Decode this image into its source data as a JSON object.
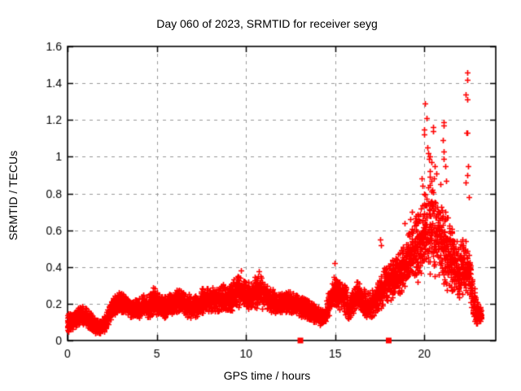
{
  "page": {
    "background": "#ffffff"
  },
  "chart_data": {
    "type": "scatter",
    "title": "Day 060 of 2023, SRMTID for receiver seyg",
    "xlabel": "GPS time / hours",
    "ylabel": "SRMTID / TECUs",
    "xlim": [
      0,
      24
    ],
    "ylim": [
      0,
      1.6
    ],
    "x_tick_values": [
      0,
      5,
      10,
      15,
      20
    ],
    "x_tick_labels": [
      "0",
      "5",
      "10",
      "15",
      "20"
    ],
    "y_tick_values": [
      0,
      0.2,
      0.4,
      0.6,
      0.8,
      1.0,
      1.2,
      1.4,
      1.6
    ],
    "y_tick_labels": [
      "0",
      "0.2",
      "0.4",
      "0.6",
      "0.8",
      "1",
      "1.2",
      "1.4",
      "1.6"
    ],
    "grid": true,
    "legend_position": "none",
    "marker_shape": "plus",
    "marker_color": "#ff0000",
    "marker_size_px": 7,
    "grid_color": "#989898",
    "axis_color": "#000000",
    "series_name": "SRMTID",
    "band_envelope_hour_min_max": [
      [
        0.0,
        0.04,
        0.15
      ],
      [
        0.3,
        0.06,
        0.16
      ],
      [
        0.6,
        0.08,
        0.18
      ],
      [
        0.9,
        0.08,
        0.19
      ],
      [
        1.2,
        0.06,
        0.16
      ],
      [
        1.5,
        0.04,
        0.13
      ],
      [
        1.8,
        0.03,
        0.11
      ],
      [
        2.1,
        0.05,
        0.14
      ],
      [
        2.4,
        0.1,
        0.21
      ],
      [
        2.7,
        0.14,
        0.27
      ],
      [
        3.0,
        0.15,
        0.27
      ],
      [
        3.3,
        0.14,
        0.24
      ],
      [
        3.6,
        0.12,
        0.22
      ],
      [
        3.9,
        0.12,
        0.23
      ],
      [
        4.2,
        0.13,
        0.26
      ],
      [
        4.5,
        0.12,
        0.24
      ],
      [
        4.8,
        0.14,
        0.3
      ],
      [
        5.1,
        0.13,
        0.26
      ],
      [
        5.4,
        0.12,
        0.24
      ],
      [
        5.7,
        0.13,
        0.26
      ],
      [
        6.0,
        0.14,
        0.27
      ],
      [
        6.3,
        0.14,
        0.3
      ],
      [
        6.6,
        0.13,
        0.27
      ],
      [
        6.9,
        0.12,
        0.24
      ],
      [
        7.2,
        0.12,
        0.25
      ],
      [
        7.5,
        0.14,
        0.28
      ],
      [
        7.8,
        0.15,
        0.3
      ],
      [
        8.1,
        0.15,
        0.3
      ],
      [
        8.4,
        0.15,
        0.28
      ],
      [
        8.7,
        0.16,
        0.31
      ],
      [
        9.0,
        0.15,
        0.3
      ],
      [
        9.3,
        0.16,
        0.33
      ],
      [
        9.6,
        0.18,
        0.37
      ],
      [
        9.9,
        0.17,
        0.34
      ],
      [
        10.2,
        0.16,
        0.32
      ],
      [
        10.5,
        0.17,
        0.36
      ],
      [
        10.8,
        0.17,
        0.36
      ],
      [
        11.1,
        0.16,
        0.31
      ],
      [
        11.4,
        0.15,
        0.29
      ],
      [
        11.7,
        0.14,
        0.27
      ],
      [
        12.0,
        0.14,
        0.26
      ],
      [
        12.3,
        0.15,
        0.28
      ],
      [
        12.6,
        0.14,
        0.26
      ],
      [
        12.9,
        0.13,
        0.25
      ],
      [
        13.2,
        0.12,
        0.24
      ],
      [
        13.5,
        0.11,
        0.22
      ],
      [
        13.8,
        0.1,
        0.2
      ],
      [
        14.1,
        0.08,
        0.18
      ],
      [
        14.4,
        0.08,
        0.17
      ],
      [
        14.7,
        0.14,
        0.3
      ],
      [
        15.0,
        0.18,
        0.4
      ],
      [
        15.3,
        0.16,
        0.32
      ],
      [
        15.6,
        0.12,
        0.3
      ],
      [
        15.75,
        0.07,
        0.24
      ],
      [
        15.9,
        0.12,
        0.28
      ],
      [
        16.2,
        0.17,
        0.34
      ],
      [
        16.5,
        0.15,
        0.3
      ],
      [
        16.8,
        0.1,
        0.28
      ],
      [
        17.1,
        0.12,
        0.28
      ],
      [
        17.4,
        0.15,
        0.33
      ],
      [
        17.7,
        0.18,
        0.4
      ],
      [
        18.0,
        0.22,
        0.43
      ],
      [
        18.3,
        0.22,
        0.46
      ],
      [
        18.6,
        0.25,
        0.5
      ],
      [
        18.9,
        0.28,
        0.56
      ],
      [
        19.2,
        0.3,
        0.62
      ],
      [
        19.5,
        0.3,
        0.68
      ],
      [
        19.8,
        0.33,
        0.74
      ],
      [
        20.1,
        0.35,
        0.86
      ],
      [
        20.4,
        0.35,
        0.92
      ],
      [
        20.7,
        0.33,
        0.85
      ],
      [
        21.0,
        0.3,
        0.78
      ],
      [
        21.3,
        0.27,
        0.68
      ],
      [
        21.6,
        0.23,
        0.62
      ],
      [
        21.9,
        0.18,
        0.52
      ],
      [
        22.2,
        0.22,
        0.56
      ],
      [
        22.5,
        0.22,
        0.52
      ],
      [
        22.7,
        0.12,
        0.35
      ],
      [
        22.9,
        0.09,
        0.22
      ],
      [
        23.1,
        0.09,
        0.2
      ],
      [
        23.2,
        0.1,
        0.17
      ]
    ],
    "outlier_points_hour_value": [
      [
        9.7,
        0.38
      ],
      [
        10.7,
        0.375
      ],
      [
        14.95,
        0.42
      ],
      [
        17.5,
        0.55
      ],
      [
        17.55,
        0.52
      ],
      [
        18.9,
        0.64
      ],
      [
        19.2,
        0.66
      ],
      [
        19.3,
        0.7
      ],
      [
        19.85,
        0.88
      ],
      [
        19.9,
        0.84
      ],
      [
        20.0,
        1.12
      ],
      [
        20.0,
        1.15
      ],
      [
        20.05,
        1.29
      ],
      [
        20.1,
        1.21
      ],
      [
        20.15,
        1.05
      ],
      [
        20.2,
        1.02
      ],
      [
        20.25,
        0.99
      ],
      [
        20.3,
        1.0
      ],
      [
        20.3,
        0.92
      ],
      [
        20.4,
        0.97
      ],
      [
        20.5,
        1.16
      ],
      [
        20.5,
        1.14
      ],
      [
        20.55,
        0.88
      ],
      [
        20.6,
        0.95
      ],
      [
        20.65,
        0.91
      ],
      [
        20.9,
        0.85
      ],
      [
        21.05,
        1.09
      ],
      [
        21.1,
        1.19
      ],
      [
        21.1,
        1.17
      ],
      [
        21.1,
        1.03
      ],
      [
        21.1,
        0.99
      ],
      [
        21.15,
        0.95
      ],
      [
        21.2,
        0.87
      ],
      [
        22.3,
        1.34
      ],
      [
        22.3,
        0.86
      ],
      [
        22.4,
        1.46
      ],
      [
        22.4,
        1.42
      ],
      [
        22.4,
        1.31
      ],
      [
        22.37,
        1.13
      ],
      [
        22.42,
        1.13
      ],
      [
        22.4,
        0.9
      ],
      [
        22.45,
        0.95
      ],
      [
        22.5,
        0.78
      ]
    ],
    "baseline_square_markers_hours": [
      13.05,
      18.0
    ],
    "baseline_square_value": 0
  }
}
